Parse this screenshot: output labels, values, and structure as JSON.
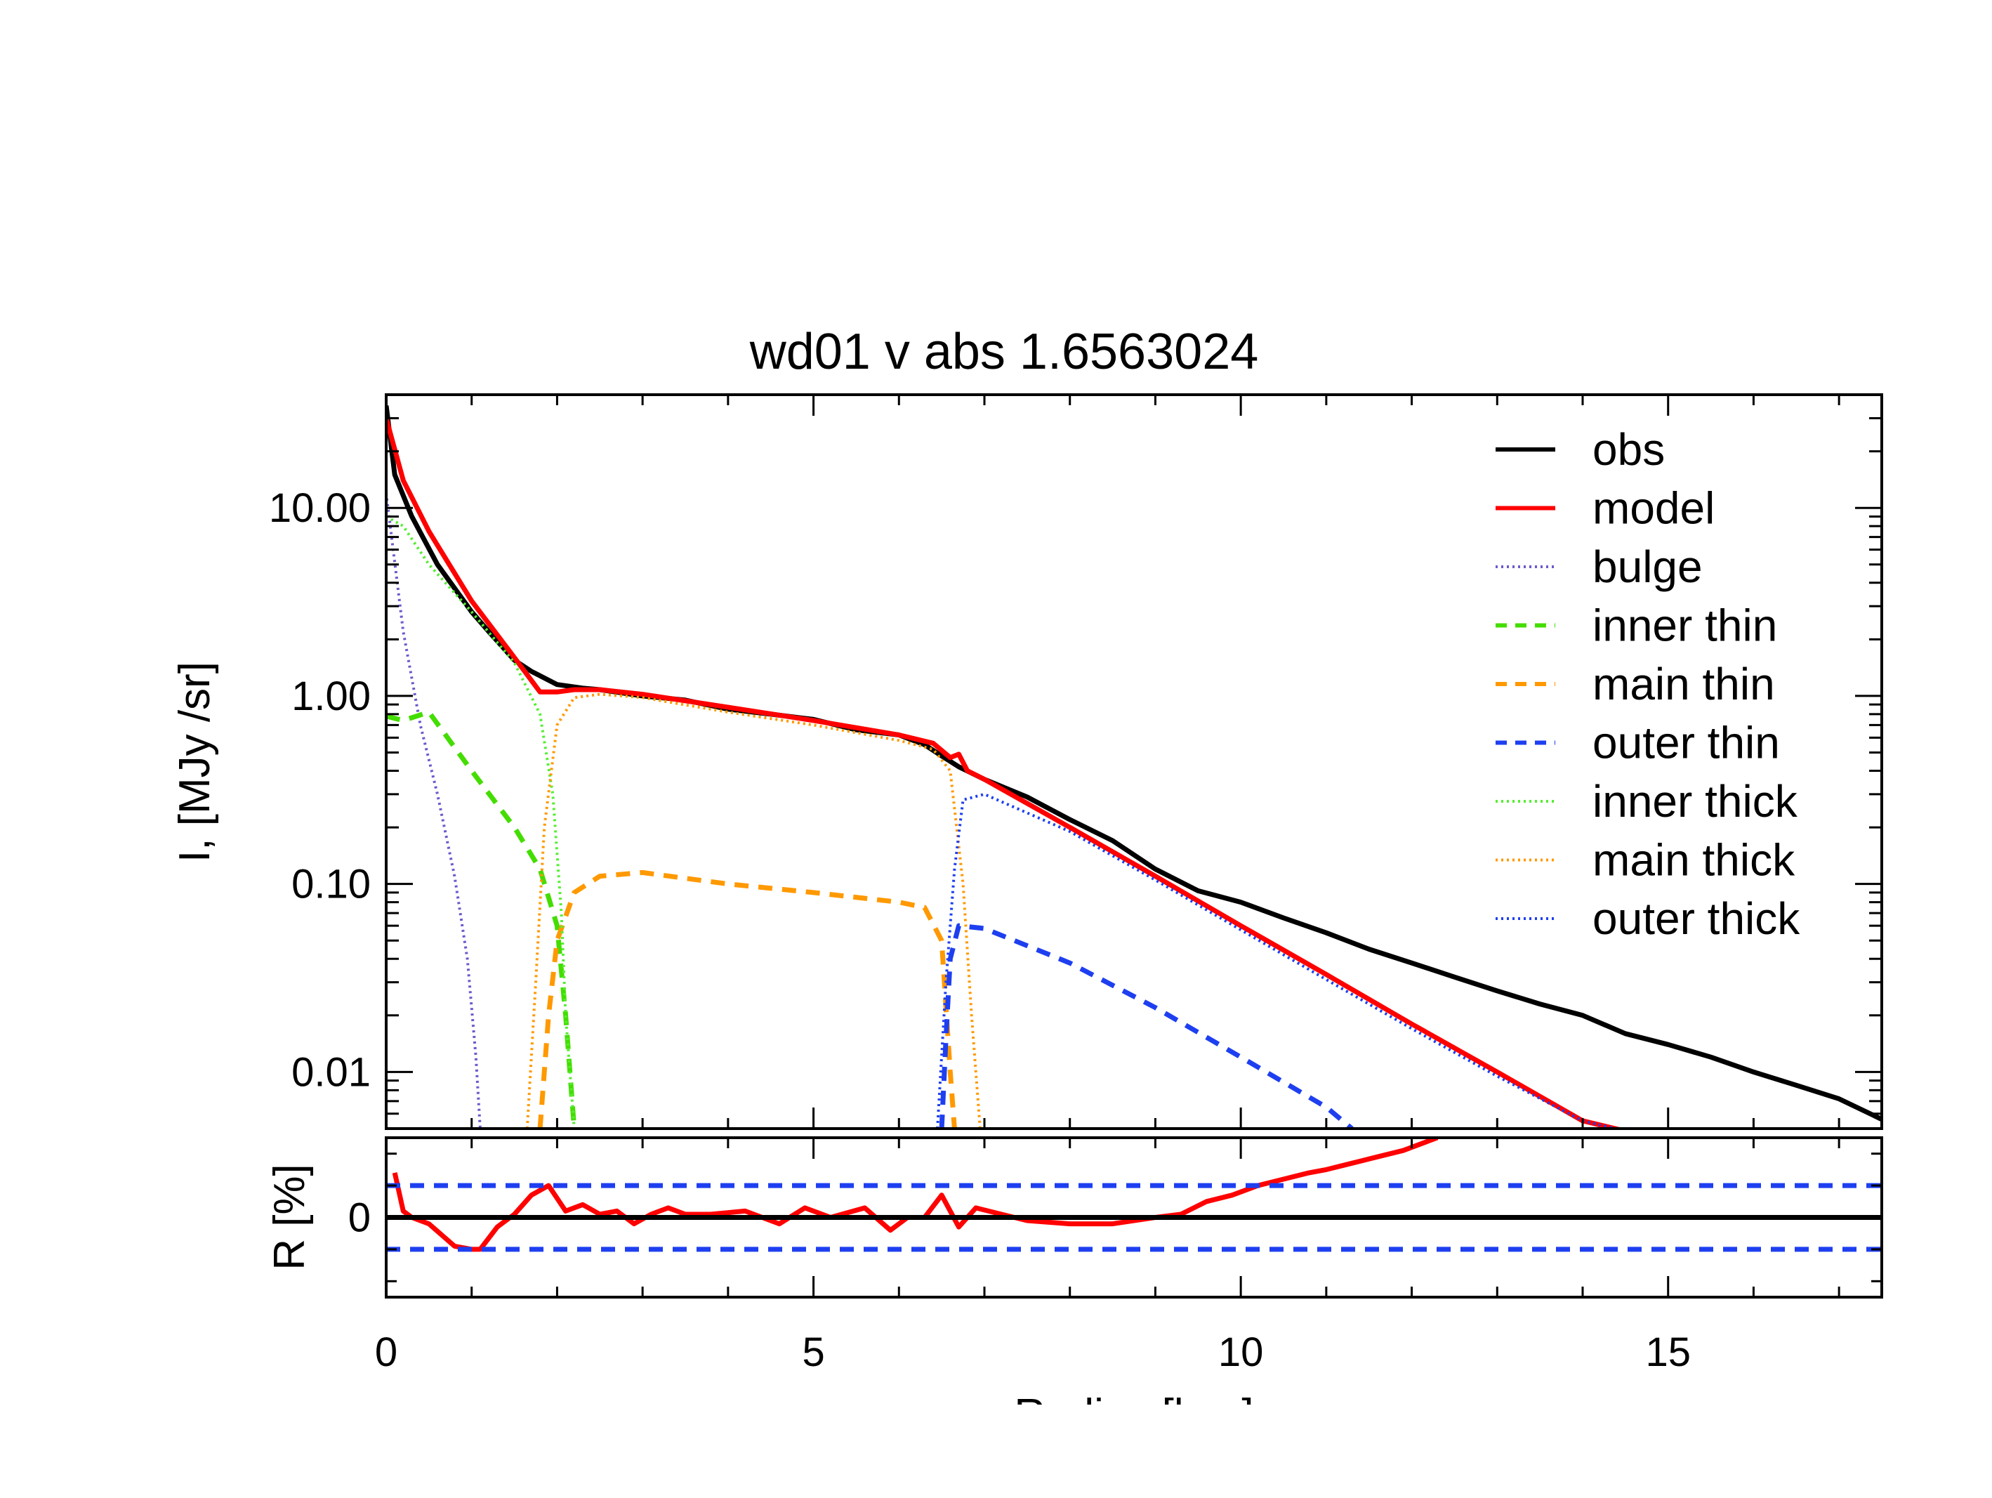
{
  "chart_data": [
    {
      "type": "line",
      "panel": "profile",
      "title": "wd01 v abs 1.6563024",
      "xlabel": "Radius [kpc]",
      "ylabel": "I, [MJy /sr]",
      "yscale": "log",
      "xlim": [
        0,
        17.5
      ],
      "ylim": [
        0.005,
        40
      ],
      "xticks": [
        0,
        5,
        10,
        15
      ],
      "xtick_labels": [
        "0",
        "5",
        "10",
        "15"
      ],
      "yticks": [
        10,
        1,
        0.1,
        0.01
      ],
      "ytick_labels": [
        "10.00",
        "1.00",
        "0.10",
        "0.01"
      ],
      "legend_position": "top-right",
      "series": [
        {
          "name": "obs",
          "color": "#000000",
          "style": "solid",
          "x": [
            0.0,
            0.1,
            0.3,
            0.6,
            1.0,
            1.2,
            1.5,
            1.7,
            2.0,
            2.3,
            2.5,
            3.0,
            3.5,
            4.0,
            4.5,
            5.0,
            5.5,
            6.0,
            6.3,
            6.5,
            6.7,
            7.0,
            7.5,
            8.0,
            8.5,
            9.0,
            9.5,
            10.0,
            10.5,
            11.0,
            11.5,
            12.0,
            12.5,
            13.0,
            13.5,
            14.0,
            14.5,
            15.0,
            15.5,
            16.0,
            16.5,
            17.0,
            17.5
          ],
          "y": [
            35,
            15,
            9,
            5,
            2.8,
            2.2,
            1.55,
            1.35,
            1.15,
            1.1,
            1.08,
            1.0,
            0.95,
            0.85,
            0.8,
            0.75,
            0.66,
            0.62,
            0.55,
            0.48,
            0.42,
            0.36,
            0.29,
            0.22,
            0.17,
            0.12,
            0.092,
            0.08,
            0.066,
            0.055,
            0.045,
            0.038,
            0.032,
            0.027,
            0.023,
            0.02,
            0.016,
            0.014,
            0.012,
            0.01,
            0.0085,
            0.0072,
            0.0056
          ]
        },
        {
          "name": "model",
          "color": "#ff0000",
          "style": "solid",
          "x": [
            0.0,
            0.2,
            0.5,
            1.0,
            1.5,
            1.8,
            2.0,
            2.2,
            2.5,
            3.0,
            4.0,
            5.0,
            6.0,
            6.4,
            6.6,
            6.7,
            6.8,
            7.0,
            8.0,
            9.0,
            10.0,
            11.0,
            12.0,
            13.0,
            14.0,
            14.8
          ],
          "y": [
            30,
            14,
            7.5,
            3.2,
            1.6,
            1.05,
            1.05,
            1.08,
            1.08,
            1.02,
            0.87,
            0.74,
            0.62,
            0.56,
            0.47,
            0.49,
            0.4,
            0.36,
            0.2,
            0.11,
            0.06,
            0.033,
            0.018,
            0.01,
            0.0055,
            0.0045
          ]
        },
        {
          "name": "bulge",
          "color": "#6a5acd",
          "style": "dotted",
          "x": [
            0.0,
            0.2,
            0.4,
            0.6,
            0.8,
            0.95,
            1.05,
            1.1
          ],
          "y": [
            12,
            2.2,
            0.7,
            0.3,
            0.11,
            0.04,
            0.012,
            0.005
          ]
        },
        {
          "name": "inner thin",
          "color": "#44dd00",
          "style": "dashed",
          "x": [
            0.0,
            0.2,
            0.5,
            1.0,
            1.5,
            1.8,
            2.0,
            2.1,
            2.2
          ],
          "y": [
            0.78,
            0.74,
            0.82,
            0.4,
            0.2,
            0.12,
            0.06,
            0.02,
            0.005
          ]
        },
        {
          "name": "main thin",
          "color": "#ff9900",
          "style": "dashed",
          "x": [
            1.8,
            1.9,
            2.0,
            2.2,
            2.5,
            3.0,
            4.0,
            5.0,
            6.0,
            6.3,
            6.5,
            6.6,
            6.65
          ],
          "y": [
            0.005,
            0.02,
            0.05,
            0.09,
            0.11,
            0.115,
            0.1,
            0.09,
            0.08,
            0.075,
            0.05,
            0.01,
            0.005
          ]
        },
        {
          "name": "outer thin",
          "color": "#1e3ff0",
          "style": "dashed",
          "x": [
            6.5,
            6.55,
            6.6,
            6.7,
            7.0,
            8.0,
            9.0,
            10.0,
            11.0,
            11.3
          ],
          "y": [
            0.005,
            0.015,
            0.04,
            0.06,
            0.058,
            0.038,
            0.022,
            0.012,
            0.0065,
            0.005
          ]
        },
        {
          "name": "inner thick",
          "color": "#55ee33",
          "style": "dotted",
          "x": [
            0.0,
            0.2,
            0.5,
            1.0,
            1.5,
            1.8,
            1.95,
            2.05,
            2.1,
            2.2
          ],
          "y": [
            9,
            8,
            5,
            2.8,
            1.5,
            0.8,
            0.3,
            0.07,
            0.02,
            0.005
          ]
        },
        {
          "name": "main thick",
          "color": "#ff9900",
          "style": "dotted",
          "x": [
            1.65,
            1.75,
            1.85,
            2.0,
            2.2,
            2.5,
            3.0,
            4.0,
            5.0,
            6.0,
            6.4,
            6.6,
            6.75,
            6.85,
            6.95
          ],
          "y": [
            0.005,
            0.03,
            0.2,
            0.7,
            0.98,
            1.02,
            0.98,
            0.82,
            0.7,
            0.58,
            0.52,
            0.4,
            0.1,
            0.02,
            0.005
          ]
        },
        {
          "name": "outer thick",
          "color": "#1e3ff0",
          "style": "dotted",
          "x": [
            6.45,
            6.55,
            6.65,
            6.75,
            7.0,
            8.0,
            9.0,
            10.0,
            11.0,
            12.0,
            13.0,
            14.0,
            14.8
          ],
          "y": [
            0.005,
            0.03,
            0.12,
            0.28,
            0.3,
            0.19,
            0.105,
            0.057,
            0.031,
            0.017,
            0.0095,
            0.0055,
            0.0045
          ]
        }
      ]
    },
    {
      "type": "line",
      "panel": "residual",
      "ylabel": "R [%]",
      "xlim": [
        0,
        17.5
      ],
      "ylim": [
        -25,
        25
      ],
      "yticks": [
        0
      ],
      "ytick_labels": [
        "0"
      ],
      "series": [
        {
          "color": "#ff0000",
          "style": "solid",
          "x": [
            0.1,
            0.2,
            0.3,
            0.5,
            0.8,
            1.0,
            1.1,
            1.3,
            1.5,
            1.7,
            1.9,
            2.1,
            2.3,
            2.5,
            2.7,
            2.9,
            3.1,
            3.3,
            3.5,
            3.8,
            4.2,
            4.6,
            4.9,
            5.2,
            5.6,
            5.9,
            6.1,
            6.3,
            6.5,
            6.7,
            6.9,
            7.2,
            7.5,
            8.0,
            8.5,
            9.0,
            9.3,
            9.6,
            9.9,
            10.2,
            10.5,
            10.8,
            11.0,
            11.3,
            11.6,
            11.9,
            12.2,
            12.3
          ],
          "y": [
            14,
            2,
            0,
            -2,
            -9,
            -10,
            -10,
            -3,
            1,
            7,
            10,
            2,
            4,
            1,
            2,
            -2,
            1,
            3,
            1,
            1,
            2,
            -2,
            3,
            0,
            3,
            -4,
            0,
            0,
            7,
            -3,
            3,
            1,
            -1,
            -2,
            -2,
            0,
            1,
            5,
            7,
            10,
            12,
            14,
            15,
            17,
            19,
            21,
            24,
            25
          ]
        },
        {
          "color": "#1e3ff0",
          "style": "dashed",
          "x": [
            0,
            17.5
          ],
          "y": [
            10,
            10
          ]
        },
        {
          "color": "#1e3ff0",
          "style": "dashed",
          "x": [
            0,
            17.5
          ],
          "y": [
            -10,
            -10
          ]
        },
        {
          "color": "#000000",
          "style": "solid",
          "x": [
            0,
            17.5
          ],
          "y": [
            0,
            0
          ]
        }
      ]
    }
  ]
}
